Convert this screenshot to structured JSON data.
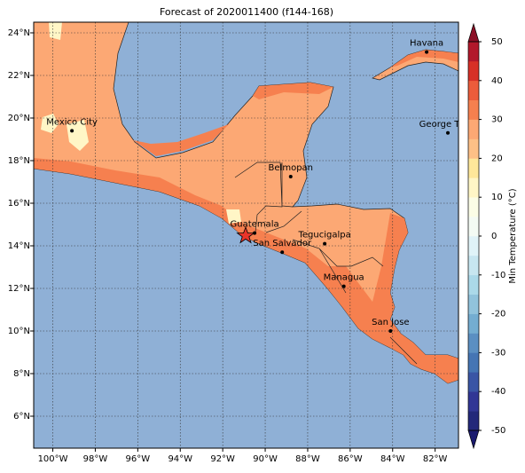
{
  "title": "Forecast of 2020011400 (f144-168)",
  "lon_range": [
    -100.9,
    -80.9
  ],
  "lat_range": [
    4.5,
    24.5
  ],
  "lon_ticks": [
    {
      "value": -100,
      "label": "100°W"
    },
    {
      "value": -98,
      "label": "98°W"
    },
    {
      "value": -96,
      "label": "96°W"
    },
    {
      "value": -94,
      "label": "94°W"
    },
    {
      "value": -92,
      "label": "92°W"
    },
    {
      "value": -90,
      "label": "90°W"
    },
    {
      "value": -88,
      "label": "88°W"
    },
    {
      "value": -86,
      "label": "86°W"
    },
    {
      "value": -84,
      "label": "84°W"
    },
    {
      "value": -82,
      "label": "82°W"
    }
  ],
  "lat_ticks": [
    {
      "value": 6,
      "label": "6°N"
    },
    {
      "value": 8,
      "label": "8°N"
    },
    {
      "value": 10,
      "label": "10°N"
    },
    {
      "value": 12,
      "label": "12°N"
    },
    {
      "value": 14,
      "label": "14°N"
    },
    {
      "value": 16,
      "label": "16°N"
    },
    {
      "value": 18,
      "label": "18°N"
    },
    {
      "value": 20,
      "label": "20°N"
    },
    {
      "value": 22,
      "label": "22°N"
    },
    {
      "value": 24,
      "label": "24°N"
    }
  ],
  "cities": [
    {
      "name": "Mexico City",
      "lon": -99.1,
      "lat": 19.4
    },
    {
      "name": "Havana",
      "lon": -82.4,
      "lat": 23.1
    },
    {
      "name": "George Town",
      "lon": -81.4,
      "lat": 19.3
    },
    {
      "name": "Belmopan",
      "lon": -88.8,
      "lat": 17.25
    },
    {
      "name": "Guatemala",
      "lon": -90.5,
      "lat": 14.6
    },
    {
      "name": "Tegucigalpa",
      "lon": -87.2,
      "lat": 14.1
    },
    {
      "name": "San Salvador",
      "lon": -89.2,
      "lat": 13.7
    },
    {
      "name": "Managua",
      "lon": -86.3,
      "lat": 12.1
    },
    {
      "name": "San Jose",
      "lon": -84.1,
      "lat": 10.0
    }
  ],
  "colorbar": {
    "label": "Min Temperature (°C)",
    "ticks": [
      -50,
      -40,
      -30,
      -20,
      -10,
      0,
      10,
      20,
      30,
      40,
      50
    ],
    "colors": [
      "#23297a",
      "#313695",
      "#3a55a5",
      "#4575b4",
      "#5b8fc2",
      "#74add1",
      "#91c3dc",
      "#abd9e9",
      "#c7e6f0",
      "#e0f3f8",
      "#f4fbf4",
      "#fbfde6",
      "#fff6c6",
      "#fee79a",
      "#fdc086",
      "#fca874",
      "#f6804f",
      "#ec5c3b",
      "#d73027",
      "#b2182b"
    ],
    "under": "#1a1a6e",
    "over": "#8c0f26"
  }
}
